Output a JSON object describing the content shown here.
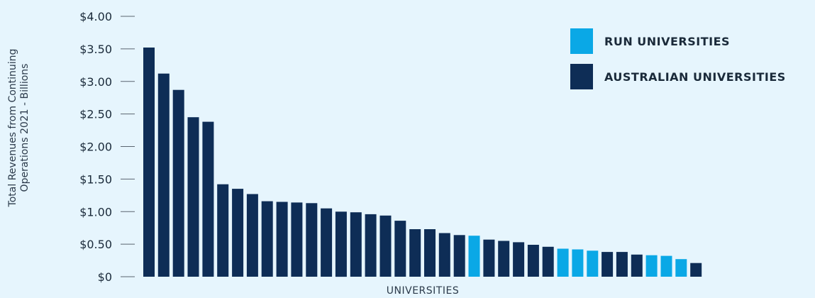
{
  "chart_data": {
    "type": "bar",
    "xlabel": "UNIVERSITIES",
    "ylabel_line1": "Total Revenues from Continuing",
    "ylabel_line2": "Operations 2021 - Billions",
    "ylim": [
      0,
      4
    ],
    "yticks": [
      "$0",
      "$0.50",
      "$1.00",
      "$1.50",
      "$2.00",
      "$2.50",
      "$3.00",
      "$3.50",
      "$4.00"
    ],
    "ytick_values": [
      0,
      0.5,
      1,
      1.5,
      2,
      2.5,
      3,
      3.5,
      4
    ],
    "grid": false,
    "legend_position": "top-right",
    "series": [
      {
        "name": "RUN UNIVERSITIES",
        "color": "#0aa8e6"
      },
      {
        "name": "AUSTRALIAN UNIVERSITIES",
        "color": "#0e2d56"
      }
    ],
    "values": [
      3.52,
      3.12,
      2.87,
      2.45,
      2.38,
      1.42,
      1.35,
      1.27,
      1.16,
      1.15,
      1.14,
      1.13,
      1.05,
      1.0,
      0.99,
      0.96,
      0.94,
      0.86,
      0.73,
      0.73,
      0.67,
      0.64,
      0.63,
      0.57,
      0.55,
      0.53,
      0.49,
      0.46,
      0.43,
      0.42,
      0.4,
      0.38,
      0.38,
      0.34,
      0.33,
      0.32,
      0.27,
      0.21
    ],
    "run_flags": [
      0,
      0,
      0,
      0,
      0,
      0,
      0,
      0,
      0,
      0,
      0,
      0,
      0,
      0,
      0,
      0,
      0,
      0,
      0,
      0,
      0,
      0,
      1,
      0,
      0,
      0,
      0,
      0,
      1,
      1,
      1,
      0,
      0,
      0,
      1,
      1,
      1,
      0
    ]
  }
}
